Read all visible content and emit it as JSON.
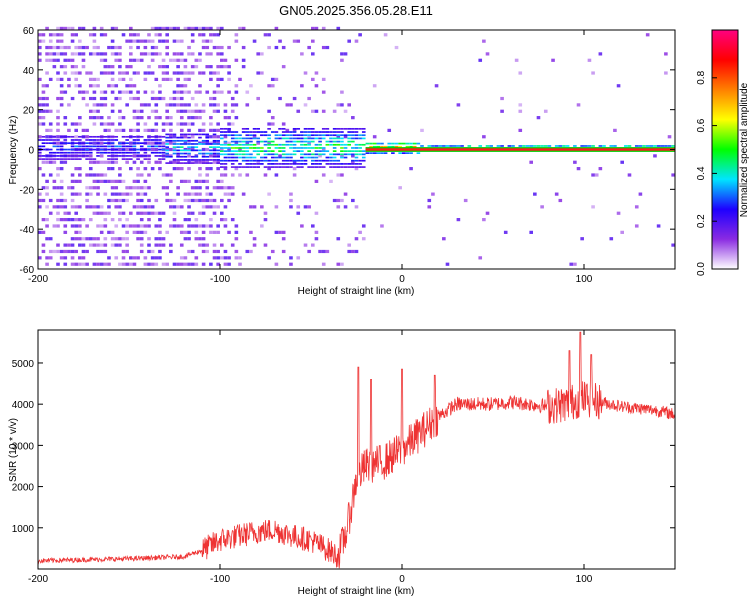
{
  "chart_data": [
    {
      "type": "heatmap",
      "title": "GN05.2025.356.05.28.E11",
      "xlabel": "Height of straight line (km)",
      "ylabel": "Frequency (Hz)",
      "xlim": [
        -200,
        150
      ],
      "ylim": [
        -60,
        60
      ],
      "x_ticks": [
        -200,
        -100,
        0,
        100
      ],
      "y_ticks": [
        -60,
        -40,
        -20,
        0,
        20,
        40,
        60
      ],
      "colorbar": {
        "label": "Normalized spectral amplitude",
        "range": [
          0.0,
          1.0
        ],
        "ticks": [
          0.0,
          0.2,
          0.4,
          0.6,
          0.8
        ],
        "colors": [
          "#ffffff",
          "#8a2be2",
          "#1e00ff",
          "#00e5ff",
          "#00ff00",
          "#ffff00",
          "#ff8000",
          "#ff0000",
          "#ff0080"
        ]
      },
      "regions": [
        {
          "x": [
            -200,
            -100
          ],
          "freq_range": [
            -60,
            60
          ],
          "amplitude": [
            0.05,
            0.2
          ],
          "description_color": "#8a2be2"
        },
        {
          "x": [
            -100,
            -20
          ],
          "freq_range": [
            -10,
            10
          ],
          "amplitude": [
            0.2,
            0.5
          ],
          "description_color": "#1e90ff"
        },
        {
          "x": [
            -20,
            150
          ],
          "freq_range": [
            -1,
            1
          ],
          "amplitude": [
            0.8,
            1.0
          ],
          "description_color": "#ff0000"
        }
      ],
      "grid": false
    },
    {
      "type": "line",
      "xlabel": "Height of straight line (km)",
      "ylabel": "SNR (10 * v/v)",
      "xlim": [
        -200,
        150
      ],
      "ylim": [
        0,
        5800
      ],
      "x_ticks": [
        -200,
        -100,
        0,
        100
      ],
      "y_ticks": [
        1000,
        2000,
        3000,
        4000,
        5000
      ],
      "color": "#ee3333",
      "envelope": [
        {
          "x": -200,
          "y": 200
        },
        {
          "x": -150,
          "y": 250
        },
        {
          "x": -120,
          "y": 300
        },
        {
          "x": -110,
          "y": 450
        },
        {
          "x": -100,
          "y": 700
        },
        {
          "x": -90,
          "y": 800
        },
        {
          "x": -80,
          "y": 900
        },
        {
          "x": -70,
          "y": 950
        },
        {
          "x": -60,
          "y": 800
        },
        {
          "x": -50,
          "y": 700
        },
        {
          "x": -40,
          "y": 450
        },
        {
          "x": -35,
          "y": 300
        },
        {
          "x": -30,
          "y": 1000
        },
        {
          "x": -25,
          "y": 2200
        },
        {
          "x": -20,
          "y": 2500
        },
        {
          "x": -10,
          "y": 2600
        },
        {
          "x": 0,
          "y": 2900
        },
        {
          "x": 10,
          "y": 3300
        },
        {
          "x": 20,
          "y": 3700
        },
        {
          "x": 30,
          "y": 4000
        },
        {
          "x": 40,
          "y": 4000
        },
        {
          "x": 50,
          "y": 4000
        },
        {
          "x": 60,
          "y": 4050
        },
        {
          "x": 70,
          "y": 4000
        },
        {
          "x": 80,
          "y": 3950
        },
        {
          "x": 90,
          "y": 4000
        },
        {
          "x": 100,
          "y": 4150
        },
        {
          "x": 110,
          "y": 4050
        },
        {
          "x": 120,
          "y": 3950
        },
        {
          "x": 130,
          "y": 3900
        },
        {
          "x": 140,
          "y": 3850
        },
        {
          "x": 150,
          "y": 3750
        }
      ],
      "spikes": [
        {
          "x": -24,
          "y": 4900
        },
        {
          "x": -17,
          "y": 4600
        },
        {
          "x": 0,
          "y": 4850
        },
        {
          "x": 18,
          "y": 4700
        },
        {
          "x": 92,
          "y": 5300
        },
        {
          "x": 98,
          "y": 5750
        },
        {
          "x": 104,
          "y": 5200
        }
      ],
      "grid": false
    }
  ]
}
